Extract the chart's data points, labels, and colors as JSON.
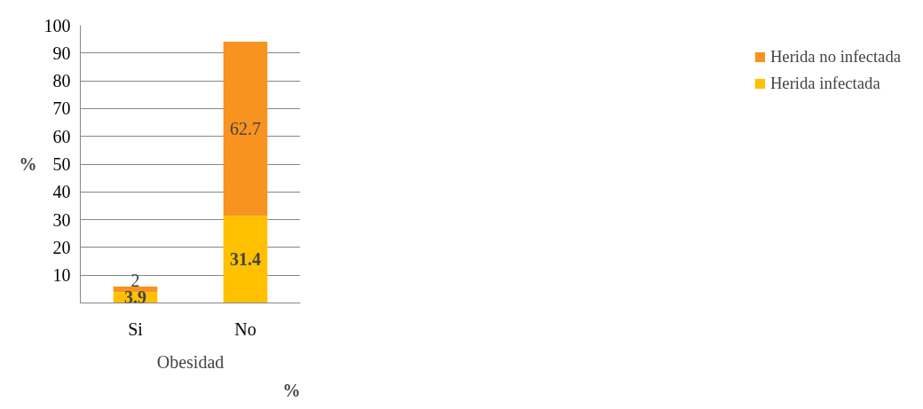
{
  "chart_data": {
    "type": "bar",
    "stacked": true,
    "categories": [
      "Si",
      "No"
    ],
    "series": [
      {
        "name": "Herida infectada",
        "color": "#ffc000",
        "values": [
          3.9,
          31.4
        ]
      },
      {
        "name": "Herida no infectada",
        "color": "#f7931e",
        "values": [
          2,
          62.7
        ]
      }
    ],
    "ylim": [
      0,
      100
    ],
    "yticks": [
      {
        "value": 0,
        "label": null
      },
      10,
      20,
      30,
      40,
      50,
      60,
      70,
      80,
      90,
      100
    ],
    "ylabel": "%",
    "xlabel": "Obesidad",
    "annotations": [
      "%"
    ],
    "grid": "y",
    "legend": "right",
    "data_labels": true
  }
}
